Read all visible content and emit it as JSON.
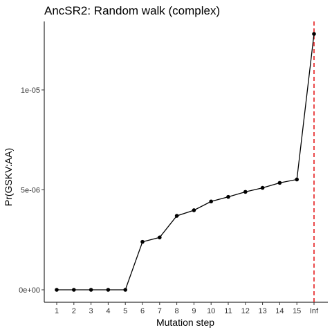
{
  "chart_data": {
    "type": "line",
    "title": "AncSR2: Random walk (complex)",
    "xlabel": "Mutation step",
    "ylabel": "Pr(GSKV:AA)",
    "categories": [
      "1",
      "2",
      "3",
      "4",
      "5",
      "6",
      "7",
      "8",
      "9",
      "10",
      "11",
      "12",
      "13",
      "14",
      "15",
      "Inf"
    ],
    "values": [
      0,
      0,
      0,
      0,
      0,
      2.4e-06,
      2.62e-06,
      3.7e-06,
      3.98e-06,
      4.42e-06,
      4.65e-06,
      4.9e-06,
      5.1e-06,
      5.35e-06,
      5.52e-06,
      1.28e-05
    ],
    "yticks": [
      {
        "value": 0,
        "label": "0e+00"
      },
      {
        "value": 5e-06,
        "label": "5e-06"
      },
      {
        "value": 1e-05,
        "label": "1e-05"
      }
    ],
    "reference_line": {
      "x": "Inf",
      "color": "#e41a1c",
      "style": "dashed"
    },
    "grid": false,
    "line_color": "#000000",
    "point_color": "#000000"
  }
}
